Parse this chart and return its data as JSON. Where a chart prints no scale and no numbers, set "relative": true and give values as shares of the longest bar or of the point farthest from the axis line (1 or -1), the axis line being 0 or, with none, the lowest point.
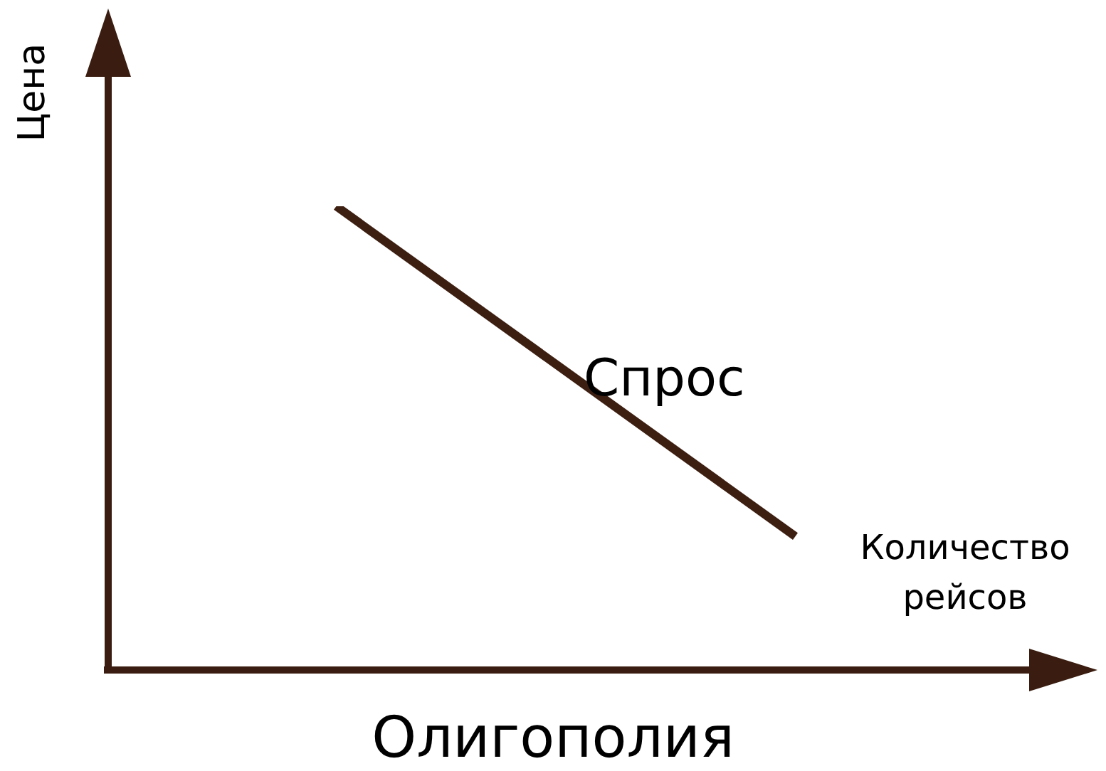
{
  "chart_data": {
    "type": "line",
    "title": "Олигополия",
    "xlabel": "Количество рейсов",
    "ylabel": "Цена",
    "relative": true,
    "categories": [
      null,
      null
    ],
    "series": [
      {
        "name": "Спрос",
        "color": "#3d1f12",
        "values": [
          1,
          0.286
        ]
      }
    ],
    "marker": "none",
    "grid": false,
    "legend": false
  }
}
